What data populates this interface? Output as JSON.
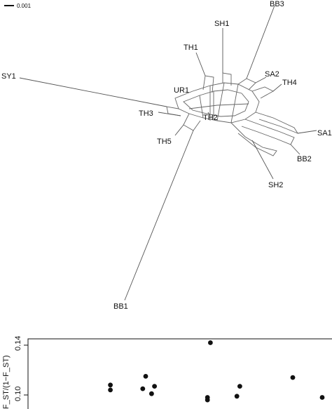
{
  "network": {
    "scale_label": "0.001",
    "taxa": [
      "BB3",
      "SH1",
      "TH1",
      "SA2",
      "TH4",
      "SY1",
      "UR1",
      "TH3",
      "TH2",
      "SA1",
      "TH5",
      "BB2",
      "SH2",
      "BB1"
    ]
  },
  "scatter": {
    "ylabel": "F_ST/(1−F_ST)",
    "chart_data": {
      "type": "scatter",
      "title": "",
      "xlabel": "",
      "ylabel": "F_ST/(1−F_ST)",
      "yticks": [
        "0.14",
        "0.10"
      ],
      "points": [
        {
          "x": 0.62,
          "y": 0.142
        },
        {
          "x": 0.28,
          "y": 0.108
        },
        {
          "x": 0.28,
          "y": 0.104
        },
        {
          "x": 0.4,
          "y": 0.115
        },
        {
          "x": 0.39,
          "y": 0.105
        },
        {
          "x": 0.43,
          "y": 0.107
        },
        {
          "x": 0.42,
          "y": 0.101
        },
        {
          "x": 0.61,
          "y": 0.098
        },
        {
          "x": 0.61,
          "y": 0.096
        },
        {
          "x": 0.72,
          "y": 0.107
        },
        {
          "x": 0.71,
          "y": 0.099
        },
        {
          "x": 0.9,
          "y": 0.114
        },
        {
          "x": 1.0,
          "y": 0.098
        }
      ]
    }
  }
}
